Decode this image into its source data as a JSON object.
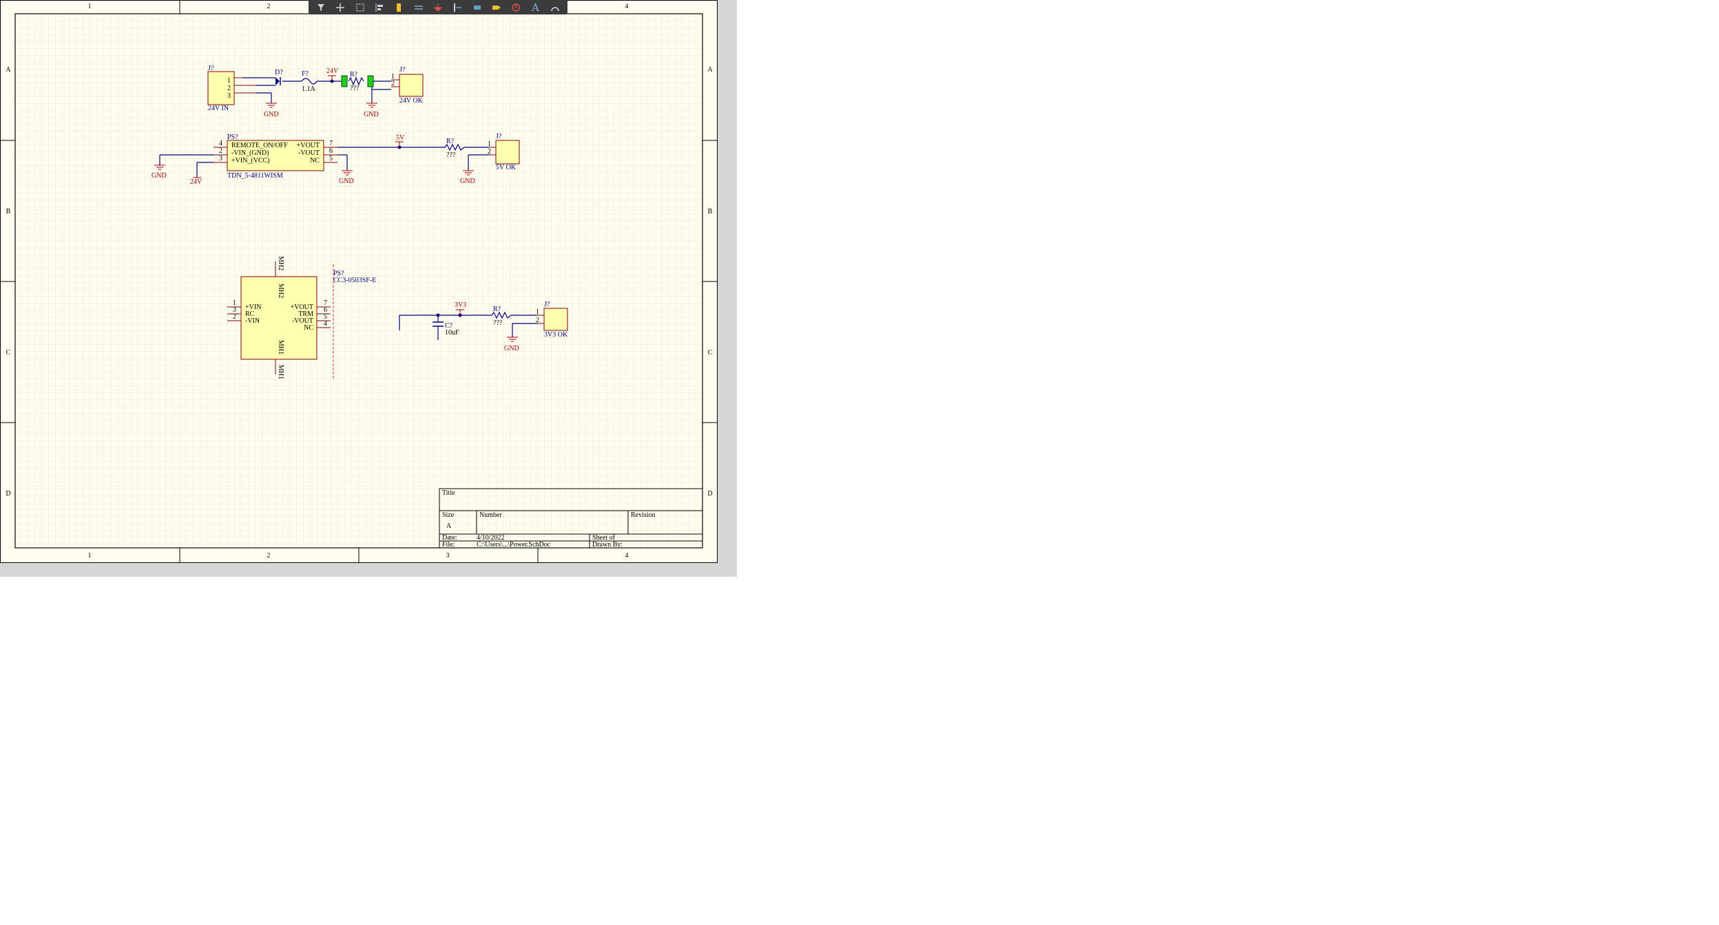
{
  "toolbar": {
    "tools": [
      {
        "icon": "filter-icon"
      },
      {
        "icon": "move-cross-icon"
      },
      {
        "icon": "select-rect-icon"
      },
      {
        "icon": "align-icon"
      },
      {
        "icon": "component-icon"
      },
      {
        "icon": "wire-icon"
      },
      {
        "icon": "power-port-icon"
      },
      {
        "icon": "bus-icon"
      },
      {
        "icon": "harness-icon"
      },
      {
        "icon": "port-icon"
      },
      {
        "icon": "no-erc-icon"
      },
      {
        "icon": "text-icon",
        "glyph": "A"
      },
      {
        "icon": "arc-icon"
      }
    ]
  },
  "sheet": {
    "colors": {
      "border": "#000000",
      "background": "#fffdf0",
      "grid": "#ece6d2",
      "wire": "#000080",
      "power": "#a00000",
      "component_fill": "#ffffb0",
      "component_stroke": "#800000",
      "designator": "#000080"
    },
    "columns": [
      "1",
      "2",
      "3",
      "4"
    ],
    "rows": [
      "A",
      "B",
      "C",
      "D"
    ]
  },
  "schematic": {
    "j_24vin": {
      "des": "J?",
      "comment": "24V IN",
      "pins": [
        "1",
        "2",
        "3"
      ]
    },
    "d1": {
      "des": "D?"
    },
    "f1": {
      "des": "F?",
      "value": "1.1A"
    },
    "net_24v": "24V",
    "r1": {
      "des": "R?",
      "value": "???"
    },
    "j_24vok": {
      "des": "J?",
      "comment": "24V OK",
      "pins": [
        "1",
        "2"
      ]
    },
    "gnd": "GND",
    "ps1": {
      "des": "PS?",
      "part": "TDN_5-4811WISM",
      "left_pins": [
        "REMOTE_ON/OFF",
        "-VIN_(GND)",
        "+VIN_(VCC)"
      ],
      "left_nums": [
        "4",
        "2",
        "3"
      ],
      "right_pins": [
        "+VOUT",
        "-VOUT",
        "NC"
      ],
      "right_nums": [
        "7",
        "6",
        "5"
      ]
    },
    "net_5v": "5V",
    "net_24v_b": "24V",
    "r2": {
      "des": "R?",
      "value": "???"
    },
    "j_5vok": {
      "des": "J?",
      "comment": "5V OK",
      "pins": [
        "1",
        "2"
      ]
    },
    "ps2": {
      "des": "PS?",
      "part": "CC3-0503SF-E",
      "left_pins": [
        "+VIN",
        "RC",
        "-VIN"
      ],
      "left_nums": [
        "1",
        "3",
        "2"
      ],
      "right_pins": [
        "+VOUT",
        "TRM",
        "-VOUT",
        "NC"
      ],
      "right_nums": [
        "7",
        "6",
        "5",
        "4"
      ],
      "mh_top": "MH2",
      "mh_bot": "MH1"
    },
    "net_3v3": "3V3",
    "c1": {
      "des": "C?",
      "value": "10uF"
    },
    "r3": {
      "des": "R?",
      "value": "???"
    },
    "j_3v3ok": {
      "des": "J?",
      "comment": "3V3 OK",
      "pins": [
        "1",
        "2"
      ]
    }
  },
  "title_block": {
    "title_label": "Title",
    "size_label": "Size",
    "size_value": "A",
    "number_label": "Number",
    "revision_label": "Revision",
    "date_label": "Date:",
    "date_value": "4/10/2022",
    "sheet_label": "Sheet   of",
    "file_label": "File:",
    "file_value": "C:\\Users\\...\\Power.SchDoc",
    "drawn_label": "Drawn By:"
  }
}
